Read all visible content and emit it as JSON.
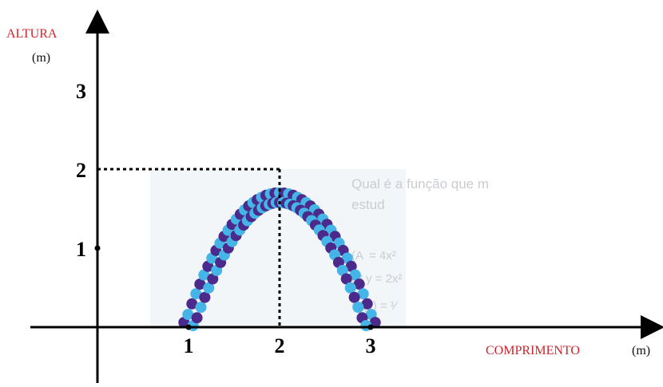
{
  "chart_data": {
    "type": "scatter",
    "title": "",
    "ylabel": "ALTURA",
    "ylabel_unit": "(m)",
    "xlabel": "COMPRIMENTO",
    "xlabel_unit": "(m)",
    "xlim": [
      0,
      5
    ],
    "ylim": [
      0,
      3.5
    ],
    "x_ticks": [
      "1",
      "2",
      "3"
    ],
    "y_ticks": [
      "1",
      "2",
      "3"
    ],
    "grid": false,
    "vertex": {
      "x": 2,
      "y": 2
    },
    "curve": {
      "shape": "parabola",
      "x_start": 1,
      "x_end": 3,
      "y_max": 2
    },
    "background_text_lines": [
      "Qual é a função que m",
      "estud",
      "(A",
      "= 4x²",
      "(B",
      "y = 2x²",
      "(",
      "f(x) = ¹⁄"
    ],
    "colors": {
      "dark_bead": "#4b2a8c",
      "light_bead": "#45b5e8",
      "axis": "#000000",
      "label_red": "#d2232a"
    }
  }
}
